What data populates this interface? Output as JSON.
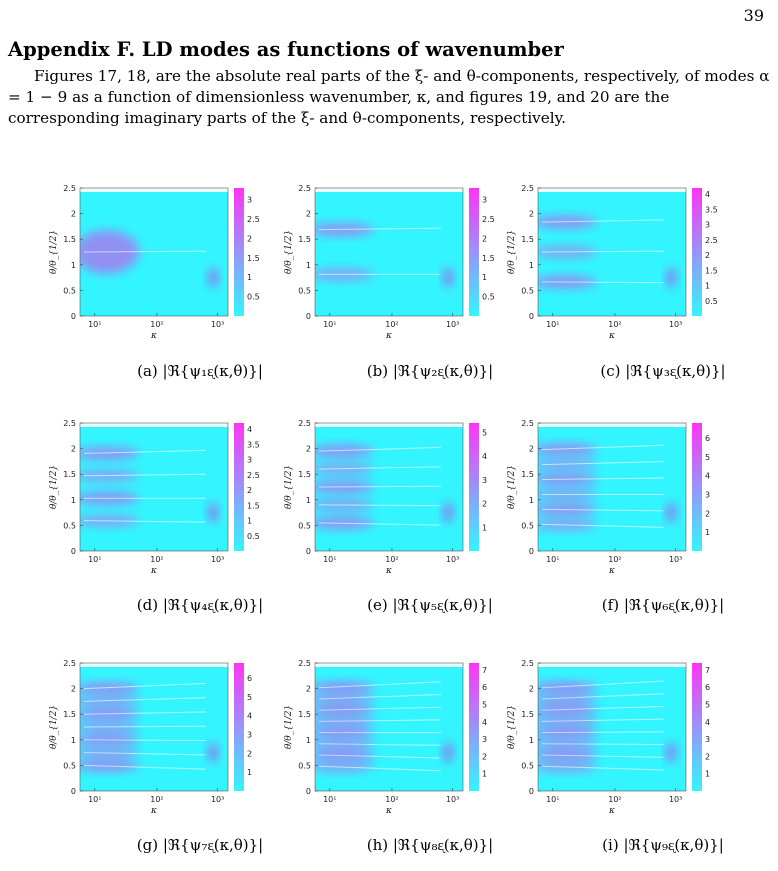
{
  "page": {
    "number": "39",
    "heading": "Appendix F. LD modes as functions of wavenumber",
    "paragraph": "Figures 17, 18, are the absolute real parts of the ξ- and θ-components, respectively, of modes α = 1 − 9 as a function of dimensionless wavenumber, κ, and figures 19, and 20 are the corresponding imaginary parts of the ξ- and θ-components, respectively."
  },
  "axes": {
    "xlabel": "κ",
    "ylabel": "θ/θ_{1/2}",
    "xticks": [
      "10¹",
      "10²",
      "10³"
    ],
    "yticks": [
      "0",
      "0.5",
      "1",
      "1.5",
      "2",
      "2.5"
    ]
  },
  "colors": {
    "low": "#33f5ff",
    "high": "#ff33f5"
  },
  "chart_data": [
    {
      "type": "heatmap",
      "caption": "(a) |ℜ{ψ₁ᶓ(κ,θ)}|",
      "mode": 1,
      "colorbar_ticks": [
        "3",
        "2.5",
        "2",
        "1.5",
        "1",
        "0.5"
      ],
      "colorbar_max": 3.3,
      "ylim": [
        0,
        2.5
      ],
      "x_scale": "log"
    },
    {
      "type": "heatmap",
      "caption": "(b) |ℜ{ψ₂ᶓ(κ,θ)}|",
      "mode": 2,
      "colorbar_ticks": [
        "3",
        "2.5",
        "2",
        "1.5",
        "1",
        "0.5"
      ],
      "colorbar_max": 3.3,
      "ylim": [
        0,
        2.5
      ],
      "x_scale": "log"
    },
    {
      "type": "heatmap",
      "caption": "(c) |ℜ{ψ₃ᶓ(κ,θ)}|",
      "mode": 3,
      "colorbar_ticks": [
        "4",
        "3.5",
        "3",
        "2.5",
        "2",
        "1.5",
        "1",
        "0.5"
      ],
      "colorbar_max": 4.2,
      "ylim": [
        0,
        2.5
      ],
      "x_scale": "log"
    },
    {
      "type": "heatmap",
      "caption": "(d) |ℜ{ψ₄ᶓ(κ,θ)}|",
      "mode": 4,
      "colorbar_ticks": [
        "4",
        "3.5",
        "3",
        "2.5",
        "2",
        "1.5",
        "1",
        "0.5"
      ],
      "colorbar_max": 4.2,
      "ylim": [
        0,
        2.5
      ],
      "x_scale": "log"
    },
    {
      "type": "heatmap",
      "caption": "(e) |ℜ{ψ₅ᶓ(κ,θ)}|",
      "mode": 5,
      "colorbar_ticks": [
        "5",
        "4",
        "3",
        "2",
        "1"
      ],
      "colorbar_max": 5.4,
      "ylim": [
        0,
        2.5
      ],
      "x_scale": "log"
    },
    {
      "type": "heatmap",
      "caption": "(f) |ℜ{ψ₆ᶓ(κ,θ)}|",
      "mode": 6,
      "colorbar_ticks": [
        "6",
        "5",
        "4",
        "3",
        "2",
        "1"
      ],
      "colorbar_max": 6.8,
      "ylim": [
        0,
        2.5
      ],
      "x_scale": "log"
    },
    {
      "type": "heatmap",
      "caption": "(g) |ℜ{ψ₇ᶓ(κ,θ)}|",
      "mode": 7,
      "colorbar_ticks": [
        "6",
        "5",
        "4",
        "3",
        "2",
        "1"
      ],
      "colorbar_max": 6.8,
      "ylim": [
        0,
        2.5
      ],
      "x_scale": "log"
    },
    {
      "type": "heatmap",
      "caption": "(h) |ℜ{ψ₈ᶓ(κ,θ)}|",
      "mode": 8,
      "colorbar_ticks": [
        "7",
        "6",
        "5",
        "4",
        "3",
        "2",
        "1"
      ],
      "colorbar_max": 7.4,
      "ylim": [
        0,
        2.5
      ],
      "x_scale": "log"
    },
    {
      "type": "heatmap",
      "caption": "(i) |ℜ{ψ₉ᶓ(κ,θ)}|",
      "mode": 9,
      "colorbar_ticks": [
        "7",
        "6",
        "5",
        "4",
        "3",
        "2",
        "1"
      ],
      "colorbar_max": 7.4,
      "ylim": [
        0,
        2.5
      ],
      "x_scale": "log"
    }
  ]
}
